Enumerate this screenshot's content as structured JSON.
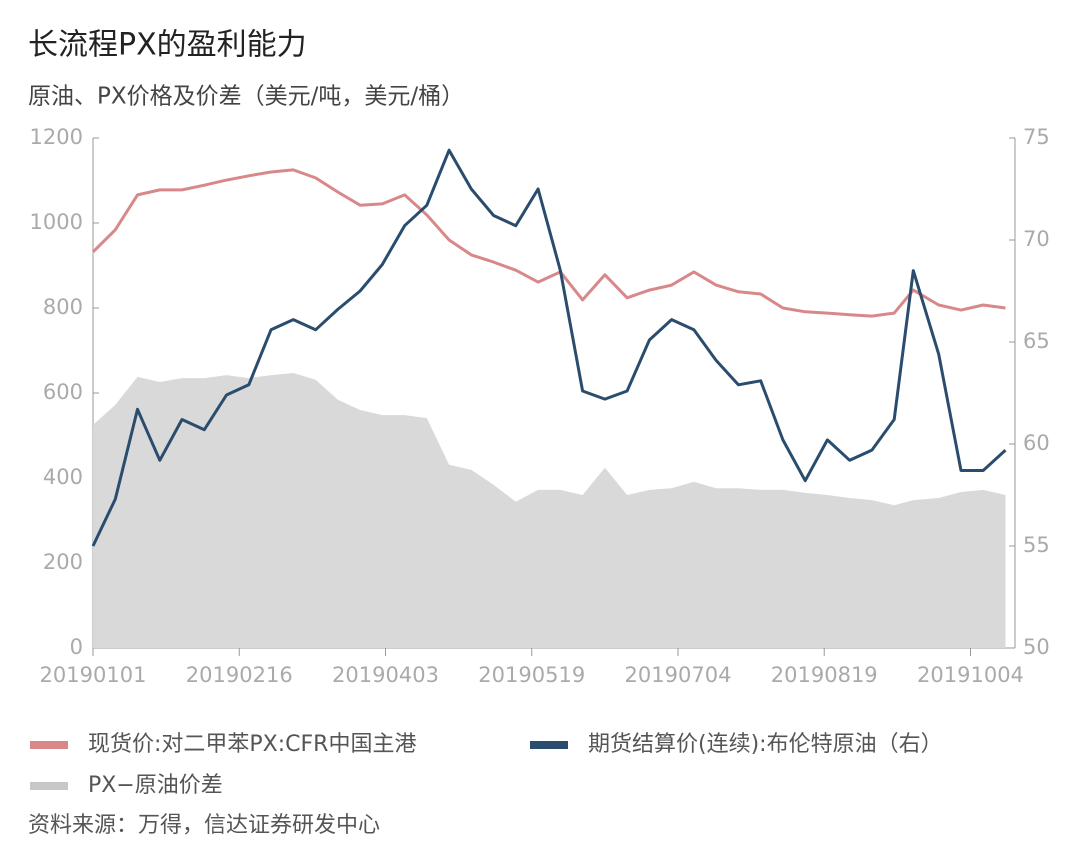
{
  "chart_data": {
    "type": "line",
    "title": "长流程PX的盈利能力",
    "subtitle": "原油、PX价格及价差（美元/吨，美元/桶）",
    "source": "资料来源：万得，信达证券研发中心",
    "x": [
      "20190101",
      "20190108",
      "20190115",
      "20190122",
      "20190129",
      "20190205",
      "20190212",
      "20190219",
      "20190226",
      "20190305",
      "20190312",
      "20190319",
      "20190326",
      "20190402",
      "20190409",
      "20190416",
      "20190423",
      "20190430",
      "20190507",
      "20190514",
      "20190521",
      "20190528",
      "20190604",
      "20190611",
      "20190618",
      "20190625",
      "20190702",
      "20190709",
      "20190716",
      "20190723",
      "20190730",
      "20190806",
      "20190813",
      "20190820",
      "20190827",
      "20190903",
      "20190910",
      "20190916",
      "20190924",
      "20191001",
      "20191008",
      "20191015"
    ],
    "xlim": [
      "20190101",
      "20191018"
    ],
    "xticks": [
      "20190101",
      "20190216",
      "20190403",
      "20190519",
      "20190704",
      "20190819",
      "20191004"
    ],
    "ylim": [
      0,
      1200
    ],
    "yticks": [
      0,
      200,
      400,
      600,
      800,
      1000,
      1200
    ],
    "y2lim": [
      50,
      75
    ],
    "y2ticks": [
      50,
      55,
      60,
      65,
      70,
      75
    ],
    "grid": false,
    "series": [
      {
        "name": "现货价:对二甲苯PX:CFR中国主港",
        "color": "#d9888a",
        "values": [
          932,
          984,
          1066,
          1078,
          1078,
          1089,
          1101,
          1111,
          1120,
          1125,
          1106,
          1073,
          1042,
          1045,
          1066,
          1019,
          960,
          925,
          908,
          889,
          861,
          885,
          819,
          878,
          824,
          842,
          854,
          885,
          854,
          838,
          833,
          800,
          791,
          788,
          784,
          781,
          788,
          842,
          807,
          795,
          807,
          800
        ]
      },
      {
        "name": "期货结算价(连续):布伦特原油（右）",
        "color": "#2a4d6e",
        "axis": "y2",
        "values": [
          55.0,
          57.3,
          61.7,
          59.2,
          61.2,
          60.7,
          62.4,
          62.9,
          65.6,
          66.1,
          65.6,
          66.6,
          67.5,
          68.8,
          70.7,
          71.7,
          74.4,
          72.5,
          71.2,
          70.7,
          72.5,
          68.5,
          62.6,
          62.2,
          62.6,
          65.1,
          66.1,
          65.6,
          64.1,
          62.9,
          63.1,
          60.2,
          58.2,
          60.2,
          59.2,
          59.7,
          61.2,
          68.5,
          64.4,
          58.7,
          58.7,
          59.7
        ]
      },
      {
        "name": "PX−原油价差",
        "color": "#d9d9d9",
        "fill": true,
        "values": [
          525,
          572,
          638,
          626,
          635,
          635,
          642,
          635,
          642,
          647,
          631,
          584,
          560,
          548,
          548,
          541,
          431,
          419,
          384,
          344,
          372,
          372,
          360,
          424,
          360,
          372,
          376,
          391,
          376,
          376,
          372,
          372,
          365,
          360,
          353,
          348,
          336,
          348,
          353,
          367,
          372,
          360
        ]
      }
    ]
  }
}
